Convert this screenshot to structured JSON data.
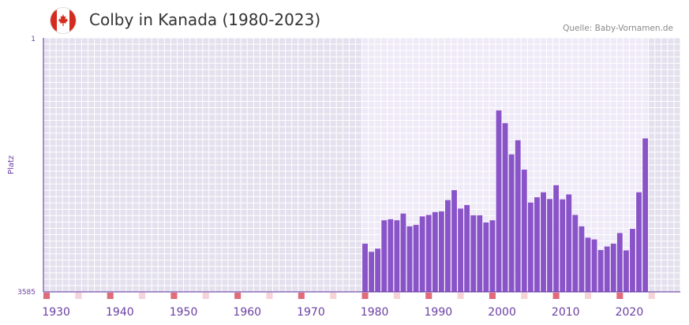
{
  "header": {
    "title": "Colby in Kanada (1980-2023)",
    "source": "Quelle: Baby-Vornamen.de",
    "flag_icon": "canada-flag-icon"
  },
  "colors": {
    "bar": "#8a54c9",
    "axis_text": "#6a3fa3",
    "plot_bg_outside": "#e4e0ee",
    "plot_bg_range": "#efeaf7",
    "grid": "#ffffff",
    "decade_marker": "#e06b7b",
    "minor_marker": "#f6d3d8",
    "flag_red": "#d52b1e"
  },
  "chart_data": {
    "type": "bar",
    "title": "Colby in Kanada (1980-2023)",
    "ylabel": "Platz",
    "xlabel": "",
    "y_axis_inverted": true,
    "ylim": [
      1,
      3585
    ],
    "y_tick_labels": [
      "1",
      "3585"
    ],
    "x_tick_labels": [
      "1930",
      "1940",
      "1950",
      "1960",
      "1970",
      "1980",
      "1990",
      "2000",
      "2010",
      "2020"
    ],
    "xlim": [
      1928,
      2028
    ],
    "highlight_range": [
      1978,
      2022
    ],
    "years": [
      1978,
      1979,
      1980,
      1981,
      1982,
      1983,
      1984,
      1985,
      1986,
      1987,
      1988,
      1989,
      1990,
      1991,
      1992,
      1993,
      1994,
      1995,
      1996,
      1997,
      1998,
      1999,
      2000,
      2001,
      2002,
      2003,
      2004,
      2005,
      2006,
      2007,
      2008,
      2009,
      2010,
      2011,
      2012,
      2013,
      2014,
      2015,
      2016,
      2017,
      2018,
      2019,
      2020,
      2021,
      2022
    ],
    "ranks": [
      2905,
      3020,
      2975,
      2575,
      2560,
      2575,
      2480,
      2660,
      2640,
      2520,
      2500,
      2460,
      2450,
      2290,
      2150,
      2410,
      2360,
      2505,
      2505,
      2605,
      2575,
      1025,
      1205,
      1645,
      1445,
      1860,
      2325,
      2250,
      2180,
      2275,
      2080,
      2280,
      2210,
      2500,
      2660,
      2820,
      2845,
      2995,
      2945,
      2905,
      2755,
      3000,
      2695,
      2180,
      1420
    ]
  }
}
